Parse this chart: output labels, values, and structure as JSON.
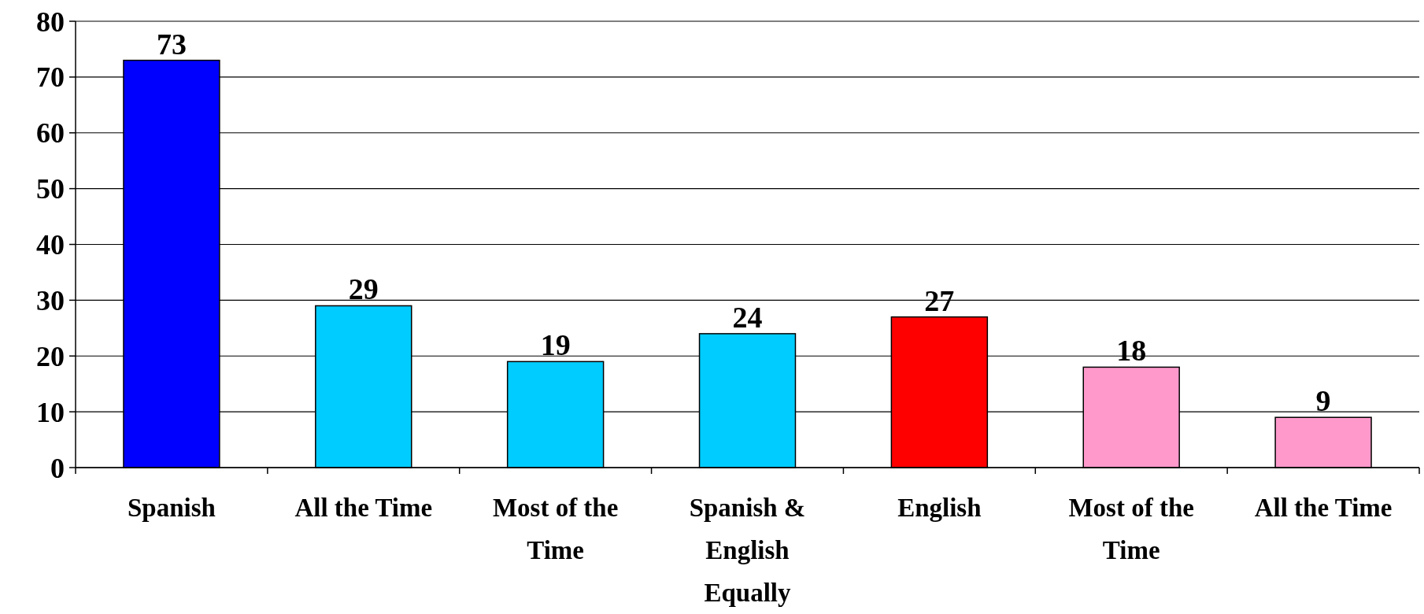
{
  "chart_data": {
    "type": "bar",
    "categories": [
      "Spanish",
      "All the Time",
      "Most of the Time",
      "Spanish & English Equally",
      "English",
      "Most of the Time",
      "All the Time"
    ],
    "values": [
      73,
      29,
      19,
      24,
      27,
      18,
      9
    ],
    "colors": [
      "#0000ff",
      "#00ccff",
      "#00ccff",
      "#00ccff",
      "#ff0000",
      "#ff99cc",
      "#ff99cc"
    ],
    "ylim": [
      0,
      80
    ],
    "yticks": [
      0,
      10,
      20,
      30,
      40,
      50,
      60,
      70,
      80
    ],
    "grid": "y",
    "data_labels": true
  }
}
